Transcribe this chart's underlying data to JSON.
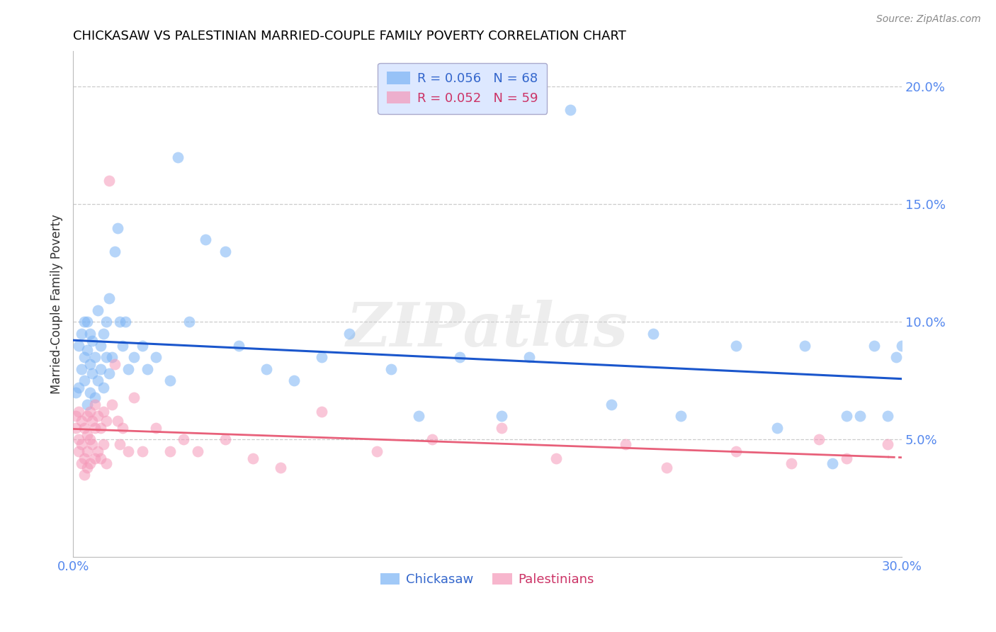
{
  "title": "CHICKASAW VS PALESTINIAN MARRIED-COUPLE FAMILY POVERTY CORRELATION CHART",
  "source": "Source: ZipAtlas.com",
  "ylabel": "Married-Couple Family Poverty",
  "xmin": 0.0,
  "xmax": 0.3,
  "ymin": 0.0,
  "ymax": 0.215,
  "yticks": [
    0.05,
    0.1,
    0.15,
    0.2
  ],
  "ytick_labels": [
    "5.0%",
    "10.0%",
    "15.0%",
    "20.0%"
  ],
  "chickasaw_R": 0.056,
  "chickasaw_N": 68,
  "palestinian_R": 0.052,
  "palestinian_N": 59,
  "chickasaw_color": "#7ab3f5",
  "palestinian_color": "#f598b8",
  "trendline_chickasaw_color": "#1a56cc",
  "trendline_palestinian_color": "#e8607a",
  "watermark": "ZIPatlas",
  "chickasaw_x": [
    0.001,
    0.002,
    0.002,
    0.003,
    0.003,
    0.004,
    0.004,
    0.004,
    0.005,
    0.005,
    0.005,
    0.006,
    0.006,
    0.006,
    0.007,
    0.007,
    0.008,
    0.008,
    0.009,
    0.009,
    0.01,
    0.01,
    0.011,
    0.011,
    0.012,
    0.012,
    0.013,
    0.013,
    0.014,
    0.015,
    0.016,
    0.017,
    0.018,
    0.019,
    0.02,
    0.022,
    0.025,
    0.027,
    0.03,
    0.035,
    0.038,
    0.042,
    0.048,
    0.055,
    0.06,
    0.07,
    0.08,
    0.09,
    0.1,
    0.115,
    0.125,
    0.14,
    0.155,
    0.165,
    0.18,
    0.195,
    0.21,
    0.22,
    0.24,
    0.255,
    0.265,
    0.275,
    0.28,
    0.285,
    0.29,
    0.295,
    0.298,
    0.3
  ],
  "chickasaw_y": [
    0.07,
    0.072,
    0.09,
    0.08,
    0.095,
    0.075,
    0.085,
    0.1,
    0.065,
    0.088,
    0.1,
    0.07,
    0.082,
    0.095,
    0.078,
    0.092,
    0.068,
    0.085,
    0.075,
    0.105,
    0.08,
    0.09,
    0.072,
    0.095,
    0.085,
    0.1,
    0.078,
    0.11,
    0.085,
    0.13,
    0.14,
    0.1,
    0.09,
    0.1,
    0.08,
    0.085,
    0.09,
    0.08,
    0.085,
    0.075,
    0.17,
    0.1,
    0.135,
    0.13,
    0.09,
    0.08,
    0.075,
    0.085,
    0.095,
    0.08,
    0.06,
    0.085,
    0.06,
    0.085,
    0.19,
    0.065,
    0.095,
    0.06,
    0.09,
    0.055,
    0.09,
    0.04,
    0.06,
    0.06,
    0.09,
    0.06,
    0.085,
    0.09
  ],
  "palestinian_x": [
    0.001,
    0.001,
    0.002,
    0.002,
    0.002,
    0.003,
    0.003,
    0.003,
    0.004,
    0.004,
    0.004,
    0.005,
    0.005,
    0.005,
    0.005,
    0.006,
    0.006,
    0.006,
    0.007,
    0.007,
    0.008,
    0.008,
    0.008,
    0.009,
    0.009,
    0.01,
    0.01,
    0.011,
    0.011,
    0.012,
    0.012,
    0.013,
    0.014,
    0.015,
    0.016,
    0.017,
    0.018,
    0.02,
    0.022,
    0.025,
    0.03,
    0.035,
    0.04,
    0.045,
    0.055,
    0.065,
    0.075,
    0.09,
    0.11,
    0.13,
    0.155,
    0.175,
    0.2,
    0.215,
    0.24,
    0.26,
    0.27,
    0.28,
    0.295
  ],
  "palestinian_y": [
    0.06,
    0.055,
    0.062,
    0.05,
    0.045,
    0.058,
    0.048,
    0.04,
    0.055,
    0.042,
    0.035,
    0.06,
    0.052,
    0.045,
    0.038,
    0.062,
    0.05,
    0.04,
    0.058,
    0.048,
    0.065,
    0.055,
    0.042,
    0.06,
    0.045,
    0.055,
    0.042,
    0.062,
    0.048,
    0.058,
    0.04,
    0.16,
    0.065,
    0.082,
    0.058,
    0.048,
    0.055,
    0.045,
    0.068,
    0.045,
    0.055,
    0.045,
    0.05,
    0.045,
    0.05,
    0.042,
    0.038,
    0.062,
    0.045,
    0.05,
    0.055,
    0.042,
    0.048,
    0.038,
    0.045,
    0.04,
    0.05,
    0.042,
    0.048
  ]
}
